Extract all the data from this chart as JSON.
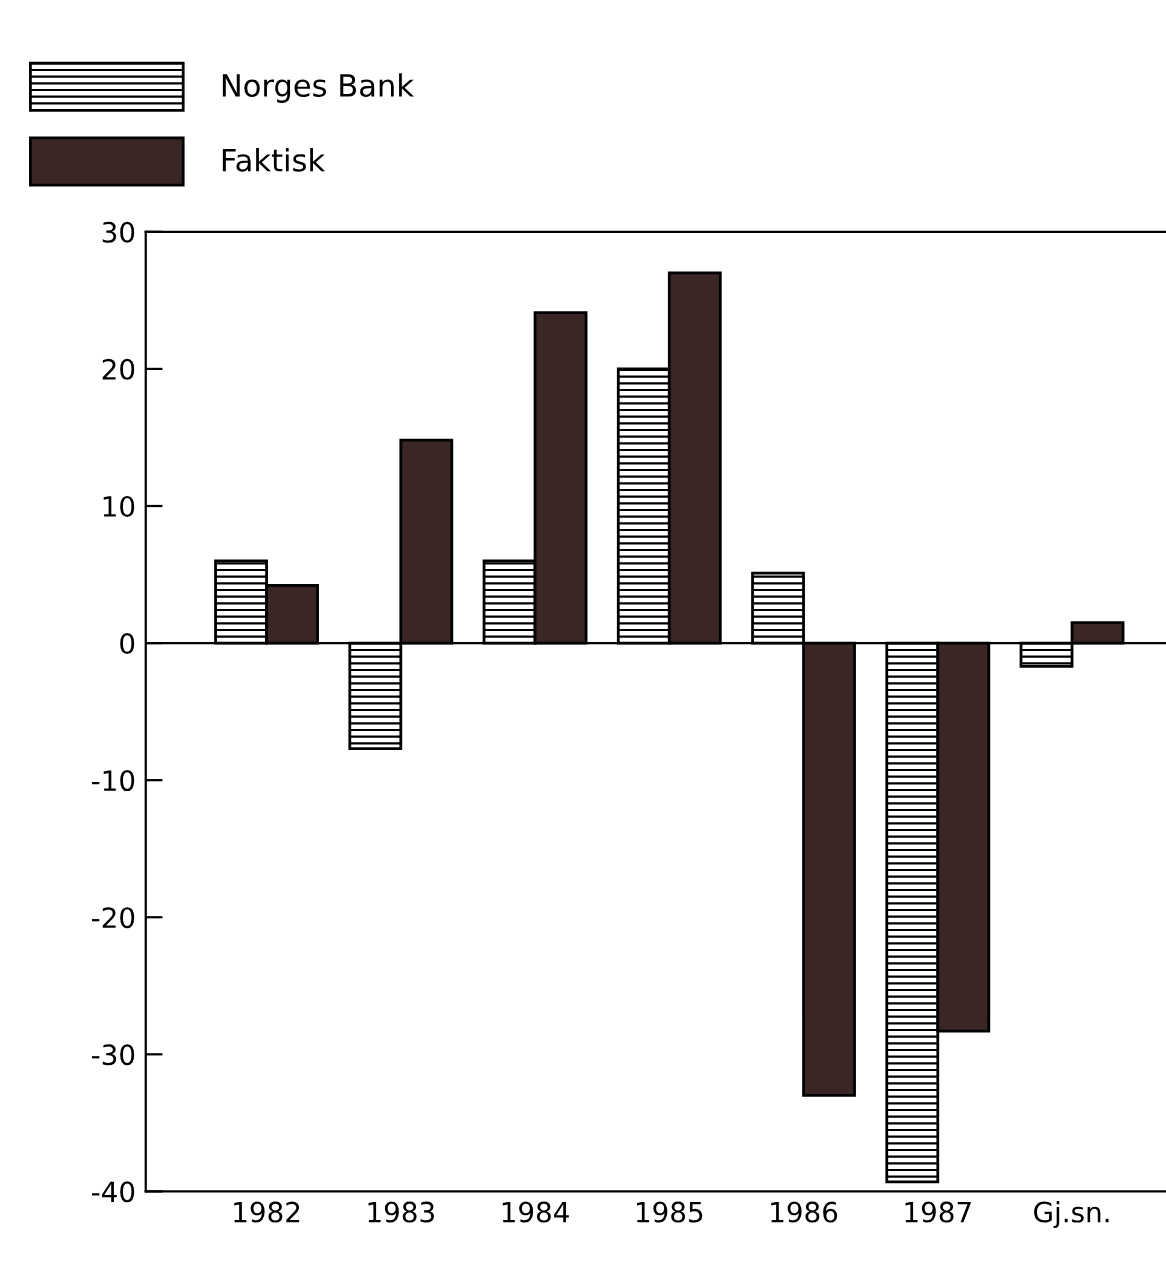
{
  "chart_data": {
    "type": "bar",
    "categories": [
      "1982",
      "1983",
      "1984",
      "1985",
      "1986",
      "1987",
      "Gj.sn."
    ],
    "series": [
      {
        "name": "Norges Bank",
        "color": "#000000",
        "values": [
          6.0,
          -7.7,
          6.0,
          20.0,
          5.1,
          -39.3,
          -1.7
        ]
      },
      {
        "name": "Faktisk",
        "color": "#3a2624",
        "values": [
          4.2,
          14.8,
          24.1,
          27.0,
          -33.0,
          -28.3,
          1.5
        ]
      }
    ],
    "ylim": [
      -40,
      30
    ],
    "yticks": [
      -40,
      -30,
      -20,
      -10,
      0,
      10,
      20,
      30
    ],
    "grid": false,
    "ref_lines": [
      {
        "axis": "y",
        "value": 0,
        "color": "#000000"
      }
    ],
    "legend": "top left"
  }
}
